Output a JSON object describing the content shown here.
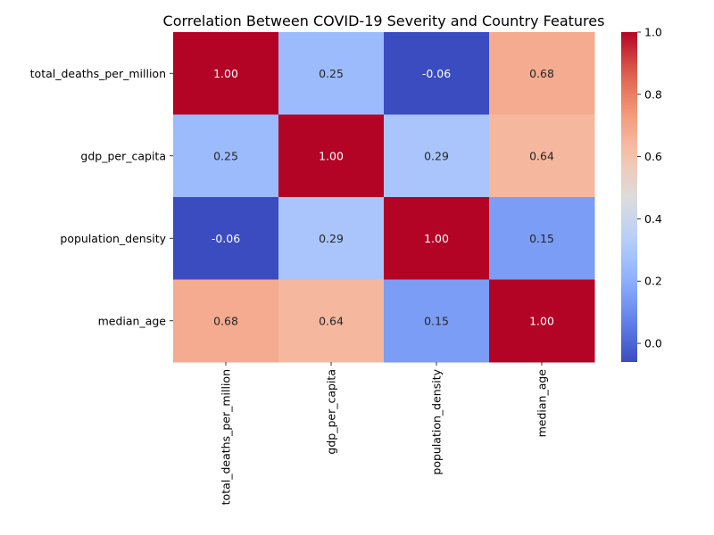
{
  "chart_data": {
    "type": "heatmap",
    "title": "Correlation Between COVID-19 Severity and Country Features",
    "rows": [
      "total_deaths_per_million",
      "gdp_per_capita",
      "population_density",
      "median_age"
    ],
    "columns": [
      "total_deaths_per_million",
      "gdp_per_capita",
      "population_density",
      "median_age"
    ],
    "values": [
      [
        1.0,
        0.25,
        -0.06,
        0.68
      ],
      [
        0.25,
        1.0,
        0.29,
        0.64
      ],
      [
        -0.06,
        0.29,
        1.0,
        0.15
      ],
      [
        0.68,
        0.64,
        0.15,
        1.0
      ]
    ],
    "cell_labels": [
      [
        "1.00",
        "0.25",
        "-0.06",
        "0.68"
      ],
      [
        "0.25",
        "1.00",
        "0.29",
        "0.64"
      ],
      [
        "-0.06",
        "0.29",
        "1.00",
        "0.15"
      ],
      [
        "0.68",
        "0.64",
        "0.15",
        "1.00"
      ]
    ],
    "colormap": "coolwarm",
    "colorbar": {
      "range": [
        -0.06,
        1.0
      ],
      "tick_values": [
        0.0,
        0.2,
        0.4,
        0.6,
        0.8,
        1.0
      ],
      "tick_labels": [
        "0.0",
        "0.2",
        "0.4",
        "0.6",
        "0.8",
        "1.0"
      ]
    },
    "xlabel": "",
    "ylabel": ""
  }
}
